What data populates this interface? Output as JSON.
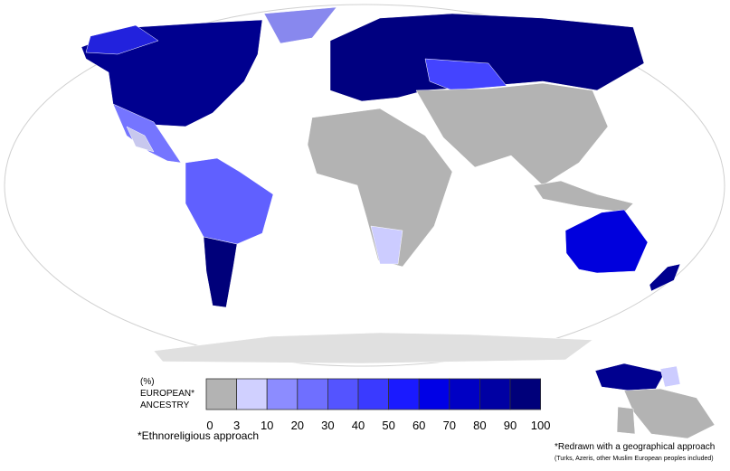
{
  "map": {
    "legend": {
      "title_lines": [
        "(%)",
        "EUROPEAN*",
        "ANCESTRY"
      ],
      "ticks": [
        0,
        3,
        10,
        20,
        30,
        40,
        50,
        60,
        70,
        80,
        90,
        100
      ],
      "colors": [
        "#b3b3b3",
        "#d0d0ff",
        "#8c8cff",
        "#6f6fff",
        "#5454ff",
        "#3a3aff",
        "#1a1aff",
        "#0000e6",
        "#0000c4",
        "#0000a3",
        "#00007a"
      ]
    },
    "note": "*Ethnoreligious approach",
    "inset": {
      "note": "*Redrawn with a geographical approach",
      "subnote": "(Turks, Azeris, other Muslim European peoples included)"
    }
  }
}
